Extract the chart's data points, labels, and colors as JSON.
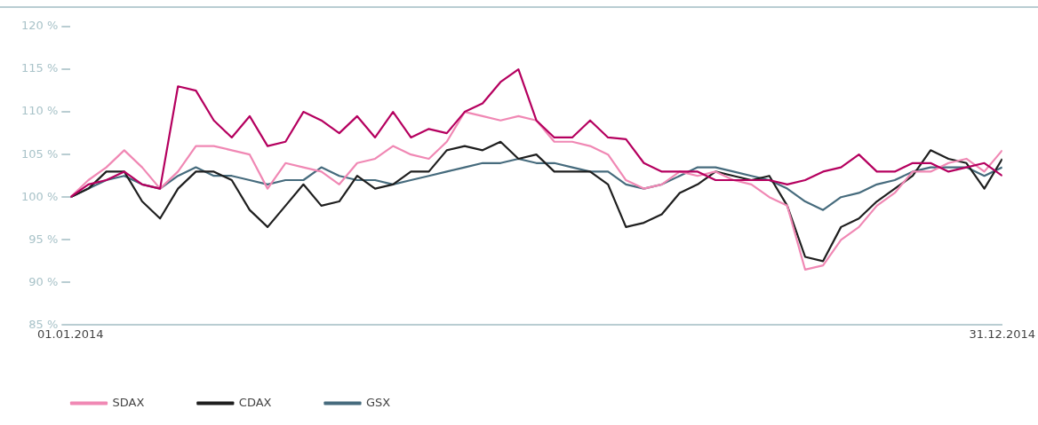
{
  "chart_data": {
    "type": "line",
    "grid": false,
    "legend": "bottom left",
    "marker": "none",
    "line_style": "solid",
    "x": [
      "2014-01-01",
      "2014-01-08",
      "2014-01-15",
      "2014-01-22",
      "2014-01-29",
      "2014-02-05",
      "2014-02-12",
      "2014-02-19",
      "2014-02-26",
      "2014-03-05",
      "2014-03-12",
      "2014-03-19",
      "2014-03-26",
      "2014-04-02",
      "2014-04-09",
      "2014-04-16",
      "2014-04-23",
      "2014-04-30",
      "2014-05-07",
      "2014-05-14",
      "2014-05-21",
      "2014-05-28",
      "2014-06-04",
      "2014-06-11",
      "2014-06-18",
      "2014-06-25",
      "2014-07-02",
      "2014-07-09",
      "2014-07-16",
      "2014-07-23",
      "2014-07-30",
      "2014-08-06",
      "2014-08-13",
      "2014-08-20",
      "2014-08-27",
      "2014-09-03",
      "2014-09-10",
      "2014-09-17",
      "2014-09-24",
      "2014-10-01",
      "2014-10-08",
      "2014-10-15",
      "2014-10-22",
      "2014-10-29",
      "2014-11-05",
      "2014-11-12",
      "2014-11-19",
      "2014-11-26",
      "2014-12-03",
      "2014-12-10",
      "2014-12-17",
      "2014-12-24",
      "2014-12-31"
    ],
    "xlim": [
      "2014-01-01",
      "2014-12-31"
    ],
    "xticks": [
      {
        "value": "2014-01-01",
        "label": "01.01.2014"
      },
      {
        "value": "2014-12-31",
        "label": "31.12.2014"
      }
    ],
    "ylim": [
      85,
      120
    ],
    "yticks": [
      {
        "value": 85,
        "label": "85 %"
      },
      {
        "value": 90,
        "label": "90 %"
      },
      {
        "value": 95,
        "label": "95 %"
      },
      {
        "value": 100,
        "label": "100 %"
      },
      {
        "value": 105,
        "label": "105 %"
      },
      {
        "value": 110,
        "label": "110 %"
      },
      {
        "value": 115,
        "label": "115 %"
      },
      {
        "value": 120,
        "label": "120 %"
      }
    ],
    "series": [
      {
        "color": "#b5005f",
        "values": [
          100,
          101.5,
          102,
          103,
          101.5,
          101,
          113,
          112.5,
          109,
          107,
          109.5,
          106,
          106.5,
          110,
          109,
          107.5,
          109.5,
          107,
          110,
          107,
          108,
          107.5,
          110,
          111,
          113.5,
          115,
          109,
          107,
          107,
          109,
          107,
          106.8,
          104,
          103,
          103,
          103,
          102,
          102,
          102,
          102,
          101.5,
          102,
          103,
          103.5,
          105,
          103,
          103,
          104,
          104,
          103,
          103.5,
          104,
          102.5
        ]
      },
      {
        "name": "SDAX",
        "color": "#f088b4",
        "values": [
          100,
          102,
          103.5,
          105.5,
          103.5,
          101,
          103,
          106,
          106,
          105.5,
          105,
          101,
          104,
          103.5,
          103,
          101.5,
          104,
          104.5,
          106,
          105,
          104.5,
          106.5,
          110,
          109.5,
          109,
          109.5,
          109,
          106.5,
          106.5,
          106,
          105,
          102,
          101,
          101.5,
          103,
          102.5,
          103,
          102,
          101.5,
          100,
          99,
          91.5,
          92,
          95,
          96.5,
          99,
          100.5,
          103,
          103,
          104,
          104.5,
          103,
          105.5
        ]
      },
      {
        "name": "CDAX",
        "color": "#1f1f1f",
        "values": [
          100,
          101,
          103,
          103,
          99.5,
          97.5,
          101,
          103,
          103,
          102,
          98.5,
          96.5,
          99,
          101.5,
          99,
          99.5,
          102.5,
          101,
          101.5,
          103,
          103,
          105.5,
          106,
          105.5,
          106.5,
          104.5,
          105,
          103,
          103,
          103,
          101.5,
          96.5,
          97,
          98,
          100.5,
          101.5,
          103,
          102.5,
          102,
          102.5,
          99,
          93,
          92.5,
          96.5,
          97.5,
          99.5,
          101,
          102.5,
          105.5,
          104.5,
          104,
          101,
          104.5
        ]
      },
      {
        "name": "GSX",
        "color": "#466b7d",
        "values": [
          100,
          101,
          102,
          102.5,
          101.5,
          101,
          102.5,
          103.5,
          102.5,
          102.5,
          102,
          101.5,
          102,
          102,
          103.5,
          102.5,
          102,
          102,
          101.5,
          102,
          102.5,
          103,
          103.5,
          104,
          104,
          104.5,
          104,
          104,
          103.5,
          103,
          103,
          101.5,
          101,
          101.5,
          102.5,
          103.5,
          103.5,
          103,
          102.5,
          102,
          101,
          99.5,
          98.5,
          100,
          100.5,
          101.5,
          102,
          103,
          103.5,
          103.5,
          103.5,
          102.5,
          103.5
        ]
      }
    ]
  }
}
